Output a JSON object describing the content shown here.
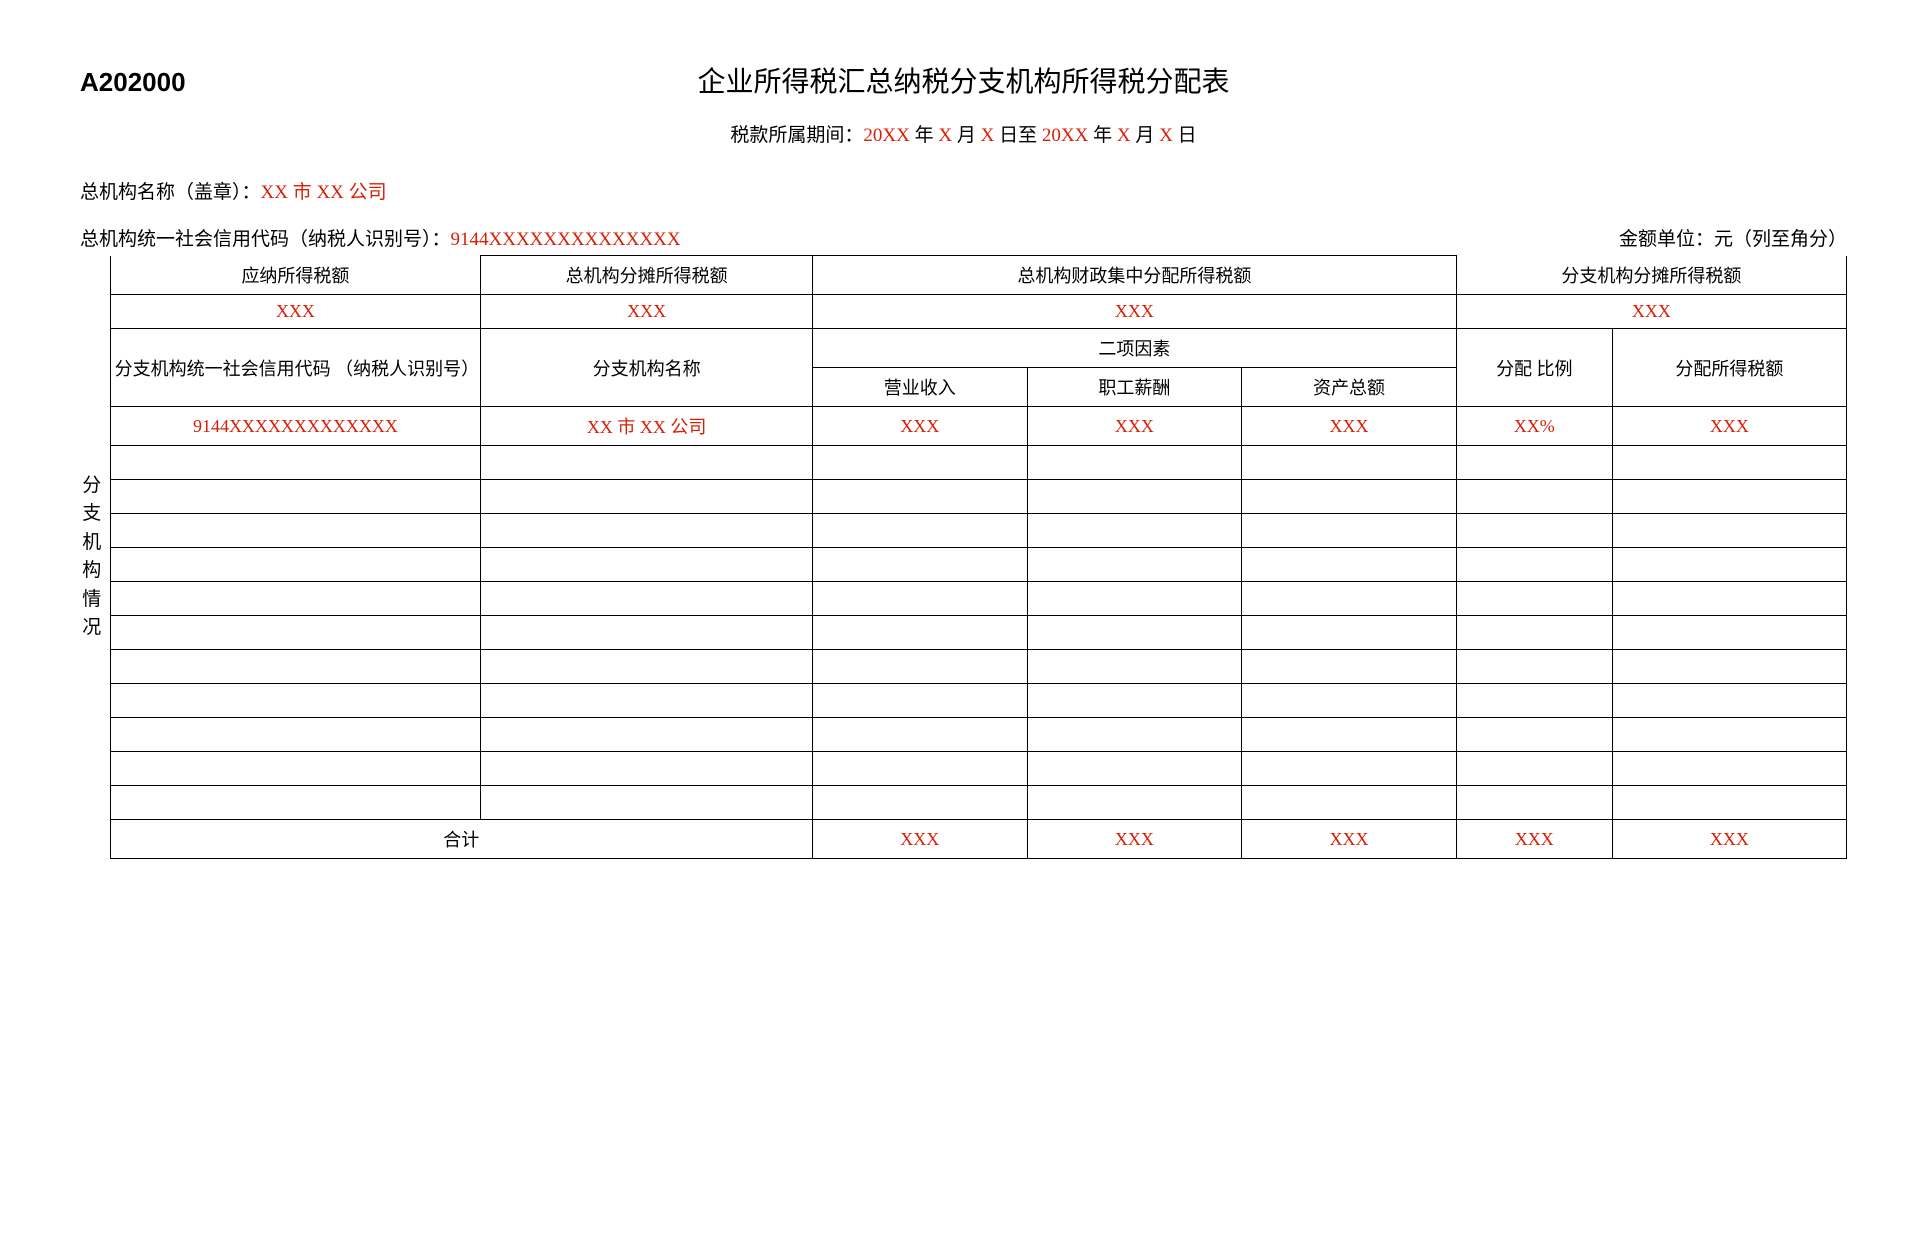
{
  "form_code": "A202000",
  "title": "企业所得税汇总纳税分支机构所得税分配表",
  "period": {
    "prefix": "税款所属期间：",
    "y1": "20XX",
    "m1": "X",
    "d1": "X",
    "y2": "20XX",
    "m2": "X",
    "d2": "X",
    "year_suffix": " 年 ",
    "month_suffix": " 月 ",
    "day_suffix": " 日",
    "to": "至 "
  },
  "org_name_label": "总机构名称（盖章）：",
  "org_name_value": "XX 市 XX 公司",
  "org_code_label": "总机构统一社会信用代码（纳税人识别号）：",
  "org_code_value": "9144XXXXXXXXXXXXXX",
  "amount_unit": "金额单位：元（列至角分）",
  "side_label": "分支机构情况",
  "headers": {
    "payable_tax": "应纳所得税额",
    "hq_share_tax": "总机构分摊所得税额",
    "hq_fiscal_alloc": "总机构财政集中分配所得税额",
    "branch_share_tax": "分支机构分摊所得税额",
    "branch_code": "分支机构统一社会信用代码 （纳税人识别号）",
    "branch_name": "分支机构名称",
    "two_factors": "二项因素",
    "revenue": "营业收入",
    "salary": "职工薪酬",
    "assets": "资产总额",
    "alloc_ratio": "分配 比例",
    "alloc_tax": "分配所得税额",
    "total": "合计"
  },
  "row1": {
    "payable_tax": "XXX",
    "hq_share_tax": "XXX",
    "hq_fiscal_alloc": "XXX",
    "branch_share_tax": "XXX"
  },
  "branch_row": {
    "code": "9144XXXXXXXXXXXXX",
    "name": "XX 市 XX 公司",
    "revenue": "XXX",
    "salary": "XXX",
    "assets": "XXX",
    "ratio": "XX%",
    "amount": "XXX"
  },
  "empty_rows": 11,
  "totals": {
    "revenue": "XXX",
    "salary": "XXX",
    "assets": "XXX",
    "ratio": "XXX",
    "amount": "XXX"
  },
  "colors": {
    "text": "#000000",
    "highlight": "#d81e06",
    "border": "#000000",
    "background": "#ffffff"
  }
}
